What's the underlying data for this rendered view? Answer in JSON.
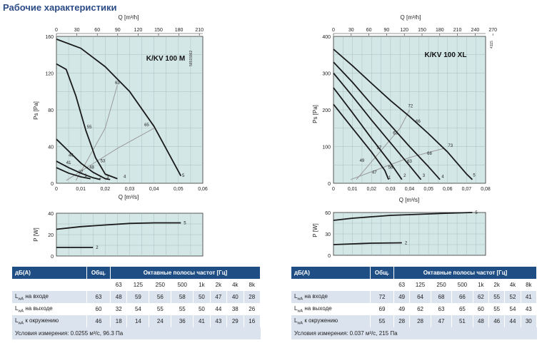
{
  "page_title": "Рабочие характеристики",
  "charts": {
    "left": {
      "model": "K/KV 100 M",
      "code": "56515962",
      "top_axis_label": "Q [m³/h]",
      "top_ticks": [
        "0",
        "30",
        "60",
        "90",
        "120",
        "150",
        "180",
        "210"
      ],
      "x_axis_label": "Q [m³/s]",
      "y_axis_label": "Ps [Pa]",
      "power_axis_label": "P [W]"
    },
    "right": {
      "model": "K/KV 100 XL",
      "code": "4115",
      "top_axis_label": "Q [m³/h]",
      "top_ticks": [
        "0",
        "30",
        "60",
        "90",
        "120",
        "150",
        "180",
        "210",
        "240",
        "270"
      ],
      "x_axis_label": "Q [m³/s]",
      "y_axis_label": "Ps [Pa]",
      "power_axis_label": "P [W]"
    }
  },
  "chart_data": [
    {
      "type": "line",
      "title": "K/KV 100 M",
      "xlabel": "Q [m³/s]",
      "ylabel": "Ps [Pa]",
      "xlim": [
        0,
        0.06
      ],
      "ylim": [
        0,
        160
      ],
      "x_ticks": [
        "0",
        "0,01",
        "0,02",
        "0,03",
        "0,04",
        "0,05",
        "0,06"
      ],
      "y_ticks": [
        "0",
        "40",
        "80",
        "120",
        "160"
      ],
      "grid": true,
      "series": [
        {
          "name": "5",
          "points": [
            [
              0,
              157
            ],
            [
              0.01,
              147
            ],
            [
              0.02,
              127
            ],
            [
              0.03,
              100
            ],
            [
              0.04,
              62
            ],
            [
              0.051,
              8
            ]
          ]
        },
        {
          "name": "4",
          "points": [
            [
              0,
              130
            ],
            [
              0.004,
              124
            ],
            [
              0.008,
              95
            ],
            [
              0.012,
              58
            ],
            [
              0.016,
              28
            ],
            [
              0.02,
              10
            ],
            [
              0.025,
              5
            ]
          ]
        },
        {
          "name": "3",
          "points": [
            [
              0,
              48
            ],
            [
              0.005,
              35
            ],
            [
              0.01,
              22
            ],
            [
              0.015,
              12
            ],
            [
              0.02,
              5
            ],
            [
              0.022,
              4
            ]
          ]
        },
        {
          "name": "2",
          "points": [
            [
              0,
              24
            ],
            [
              0.005,
              17
            ],
            [
              0.01,
              11
            ],
            [
              0.015,
              6
            ],
            [
              0.018,
              4
            ]
          ]
        },
        {
          "name": "1",
          "points": [
            [
              0,
              17
            ],
            [
              0.005,
              11
            ],
            [
              0.01,
              7
            ],
            [
              0.014,
              5
            ]
          ]
        }
      ],
      "guides": [
        {
          "points": [
            [
              0.008,
              3
            ],
            [
              0.02,
              60
            ],
            [
              0.025,
              107
            ]
          ]
        },
        {
          "points": [
            [
              0.004,
              3
            ],
            [
              0.025,
              38
            ],
            [
              0.04,
              60
            ]
          ]
        }
      ],
      "sound_labels": [
        {
          "text": "63",
          "x": 0.025,
          "y": 108
        },
        {
          "text": "55",
          "x": 0.0135,
          "y": 60
        },
        {
          "text": "65",
          "x": 0.037,
          "y": 62
        },
        {
          "text": "46",
          "x": 0.006,
          "y": 29
        },
        {
          "text": "53",
          "x": 0.019,
          "y": 23
        },
        {
          "text": "41",
          "x": 0.005,
          "y": 21
        },
        {
          "text": "48",
          "x": 0.0145,
          "y": 16
        },
        {
          "text": "37",
          "x": 0.01,
          "y": 11
        }
      ],
      "curve_labels": [
        {
          "text": "1",
          "x": 0.012,
          "y": 7
        },
        {
          "text": "2",
          "x": 0.018,
          "y": 5
        },
        {
          "text": "3",
          "x": 0.021,
          "y": 5
        },
        {
          "text": "4",
          "x": 0.028,
          "y": 6
        },
        {
          "text": "5",
          "x": 0.052,
          "y": 7
        }
      ]
    },
    {
      "type": "line",
      "title": "K/KV 100 M — P [W]",
      "xlabel": "Q [m³/s]",
      "ylabel": "P [W]",
      "xlim": [
        0,
        0.06
      ],
      "ylim": [
        0,
        40
      ],
      "y_ticks": [
        "0",
        "20",
        "40"
      ],
      "grid": true,
      "series": [
        {
          "name": "5",
          "points": [
            [
              0,
              25
            ],
            [
              0.01,
              27.5
            ],
            [
              0.02,
              29
            ],
            [
              0.03,
              30.5
            ],
            [
              0.04,
              31
            ],
            [
              0.051,
              31
            ]
          ]
        },
        {
          "name": "2",
          "points": [
            [
              0,
              8
            ],
            [
              0.005,
              8
            ],
            [
              0.01,
              8
            ],
            [
              0.015,
              8
            ]
          ]
        }
      ]
    },
    {
      "type": "line",
      "title": "K/KV 100 XL",
      "xlabel": "Q [m³/s]",
      "ylabel": "Ps [Pa]",
      "xlim": [
        0,
        0.08
      ],
      "ylim": [
        0,
        400
      ],
      "x_ticks": [
        "0",
        "0,01",
        "0,02",
        "0,03",
        "0,04",
        "0,05",
        "0,06",
        "0,07",
        "0,08"
      ],
      "y_ticks": [
        "0",
        "100",
        "200",
        "300",
        "400"
      ],
      "grid": true,
      "series": [
        {
          "name": "5",
          "points": [
            [
              0,
              365
            ],
            [
              0.01,
              320
            ],
            [
              0.02,
              272
            ],
            [
              0.03,
              225
            ],
            [
              0.04,
              182
            ],
            [
              0.05,
              135
            ],
            [
              0.06,
              85
            ],
            [
              0.07,
              25
            ],
            [
              0.073,
              10
            ]
          ]
        },
        {
          "name": "4",
          "points": [
            [
              0,
              330
            ],
            [
              0.01,
              275
            ],
            [
              0.02,
              215
            ],
            [
              0.03,
              158
            ],
            [
              0.04,
              100
            ],
            [
              0.05,
              45
            ],
            [
              0.056,
              10
            ]
          ]
        },
        {
          "name": "3",
          "points": [
            [
              0,
              300
            ],
            [
              0.01,
              237
            ],
            [
              0.02,
              172
            ],
            [
              0.03,
              110
            ],
            [
              0.04,
              48
            ],
            [
              0.046,
              10
            ]
          ]
        },
        {
          "name": "2",
          "points": [
            [
              0,
              260
            ],
            [
              0.01,
              192
            ],
            [
              0.02,
              122
            ],
            [
              0.03,
              55
            ],
            [
              0.036,
              10
            ]
          ]
        },
        {
          "name": "1",
          "points": [
            [
              0,
              215
            ],
            [
              0.01,
              150
            ],
            [
              0.02,
              85
            ],
            [
              0.027,
              35
            ],
            [
              0.029,
              10
            ]
          ]
        }
      ],
      "guides": [
        {
          "points": [
            [
              0.012,
              10
            ],
            [
              0.035,
              150
            ],
            [
              0.04,
              200
            ]
          ]
        },
        {
          "points": [
            [
              0.009,
              10
            ],
            [
              0.04,
              70
            ],
            [
              0.058,
              95
            ]
          ]
        }
      ],
      "sound_labels": [
        {
          "text": "72",
          "x": 0.0405,
          "y": 207
        },
        {
          "text": "66",
          "x": 0.0445,
          "y": 165
        },
        {
          "text": "63",
          "x": 0.0325,
          "y": 133
        },
        {
          "text": "73",
          "x": 0.0615,
          "y": 99
        },
        {
          "text": "57",
          "x": 0.024,
          "y": 93
        },
        {
          "text": "68",
          "x": 0.0505,
          "y": 78
        },
        {
          "text": "63",
          "x": 0.04,
          "y": 56
        },
        {
          "text": "49",
          "x": 0.015,
          "y": 58
        },
        {
          "text": "56",
          "x": 0.03,
          "y": 40
        },
        {
          "text": "47",
          "x": 0.0215,
          "y": 26
        }
      ],
      "curve_labels": [
        {
          "text": "1",
          "x": 0.0295,
          "y": 12
        },
        {
          "text": "2",
          "x": 0.0375,
          "y": 17
        },
        {
          "text": "3",
          "x": 0.0475,
          "y": 17
        },
        {
          "text": "4",
          "x": 0.0575,
          "y": 15
        },
        {
          "text": "5",
          "x": 0.074,
          "y": 18
        }
      ]
    },
    {
      "type": "line",
      "title": "K/KV 100 XL — P [W]",
      "xlabel": "Q [m³/s]",
      "ylabel": "P [W]",
      "xlim": [
        0,
        0.08
      ],
      "ylim": [
        0,
        60
      ],
      "y_ticks": [
        "0",
        "30",
        "60"
      ],
      "grid": true,
      "series": [
        {
          "name": "5",
          "points": [
            [
              0,
              49
            ],
            [
              0.01,
              52
            ],
            [
              0.02,
              54
            ],
            [
              0.03,
              56
            ],
            [
              0.04,
              57
            ],
            [
              0.05,
              58
            ],
            [
              0.06,
              59
            ],
            [
              0.073,
              60
            ]
          ]
        },
        {
          "name": "2",
          "points": [
            [
              0,
              15
            ],
            [
              0.01,
              16
            ],
            [
              0.02,
              17
            ],
            [
              0.036,
              17.5
            ]
          ]
        }
      ]
    }
  ],
  "tables": {
    "left": {
      "header": {
        "db": "дБ(A)",
        "total": "Общ.",
        "bands_title": "Октавные полосы частот [Гц]"
      },
      "bands": [
        "63",
        "125",
        "250",
        "500",
        "1k",
        "2k",
        "4k",
        "8k"
      ],
      "rows": [
        {
          "label_main": "L",
          "label_sub": "wA",
          "label_rest": " на входе",
          "total": "63",
          "values": [
            "48",
            "59",
            "56",
            "58",
            "50",
            "47",
            "40",
            "28"
          ]
        },
        {
          "label_main": "L",
          "label_sub": "wA",
          "label_rest": " на выходе",
          "total": "60",
          "values": [
            "32",
            "54",
            "55",
            "55",
            "50",
            "44",
            "38",
            "26"
          ]
        },
        {
          "label_main": "L",
          "label_sub": "wA",
          "label_rest": " к окружению",
          "total": "46",
          "values": [
            "18",
            "14",
            "24",
            "36",
            "41",
            "43",
            "29",
            "16"
          ]
        }
      ],
      "conditions": "Условия измерения: 0.0255 м³/с, 96.3 Па"
    },
    "right": {
      "header": {
        "db": "дБ(A)",
        "total": "Общ.",
        "bands_title": "Октавные полосы частот [Гц]"
      },
      "bands": [
        "63",
        "125",
        "250",
        "500",
        "1k",
        "2k",
        "4k",
        "8k"
      ],
      "rows": [
        {
          "label_main": "L",
          "label_sub": "wA",
          "label_rest": " на входе",
          "total": "72",
          "values": [
            "49",
            "64",
            "68",
            "66",
            "62",
            "55",
            "52",
            "41"
          ]
        },
        {
          "label_main": "L",
          "label_sub": "wA",
          "label_rest": " на выходе",
          "total": "69",
          "values": [
            "49",
            "62",
            "63",
            "65",
            "60",
            "55",
            "54",
            "43"
          ]
        },
        {
          "label_main": "L",
          "label_sub": "wA",
          "label_rest": " к окружению",
          "total": "55",
          "values": [
            "28",
            "28",
            "47",
            "51",
            "48",
            "46",
            "44",
            "30"
          ]
        }
      ],
      "conditions": "Условия измерения: 0.037 м³/с, 215 Па"
    }
  }
}
